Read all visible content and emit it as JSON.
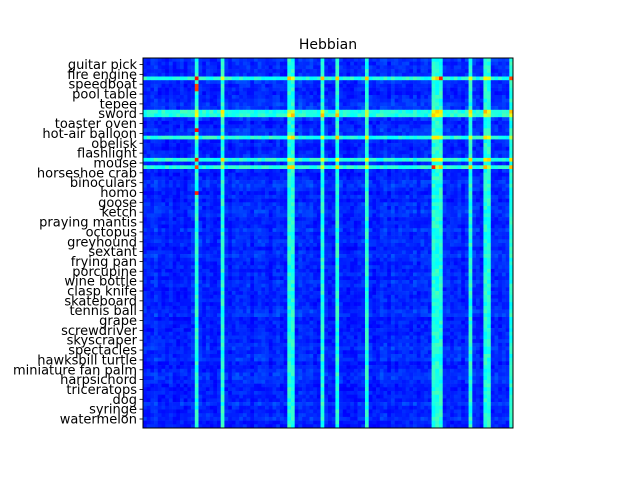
{
  "chart_data": {
    "type": "heatmap",
    "title": "Hebbian",
    "xlabel": "",
    "ylabel": "",
    "ylabels": [
      "guitar pick",
      "fire engine",
      "speedboat",
      "pool table",
      "tepee",
      "sword",
      "toaster oven",
      "hot-air balloon",
      "obelisk",
      "flashlight",
      "mouse",
      "horseshoe crab",
      "binoculars",
      "homo",
      "goose",
      "ketch",
      "praying mantis",
      "octopus",
      "greyhound",
      "sextant",
      "frying pan",
      "porcupine",
      "wine bottle",
      "clasp knife",
      "skateboard",
      "tennis ball",
      "grape",
      "screwdriver",
      "skyscraper",
      "spectacles",
      "hawksbill turtle",
      "miniature fan palm",
      "harpsichord",
      "triceratops",
      "dog",
      "syringe",
      "watermelon"
    ],
    "xlabels": [],
    "colormap": "jet",
    "colorbar": false,
    "grid": false,
    "legend": "none",
    "vmin": 0,
    "vmax": 1,
    "estimated_matrix_size": 100,
    "bright_rows": [
      5,
      14,
      15,
      21,
      27,
      29
    ],
    "bright_cols": [
      14,
      21,
      39,
      40,
      48,
      52,
      60,
      78,
      79,
      80,
      88,
      92,
      93,
      99
    ],
    "hot_cells": [
      [
        5,
        14
      ],
      [
        5,
        80
      ],
      [
        5,
        99
      ],
      [
        7,
        14
      ],
      [
        8,
        14
      ],
      [
        19,
        14
      ],
      [
        27,
        14
      ],
      [
        29,
        14
      ],
      [
        29,
        78
      ],
      [
        36,
        14
      ]
    ]
  }
}
